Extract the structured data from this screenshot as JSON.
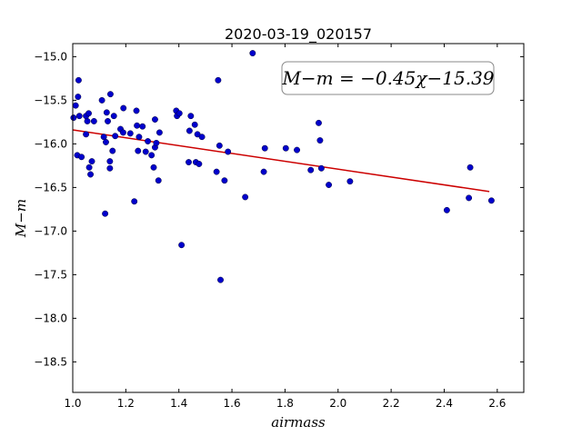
{
  "chart_data": {
    "type": "scatter",
    "title": "2020-03-19_020157",
    "xlabel": "airmass",
    "ylabel": "M−m",
    "xlim": [
      1.0,
      2.7
    ],
    "ylim": [
      -18.85,
      -14.85
    ],
    "y_inverted": true,
    "xticks": [
      "1.0",
      "1.2",
      "1.4",
      "1.6",
      "1.8",
      "2.0",
      "2.2",
      "2.4",
      "2.6"
    ],
    "yticks": [
      "−15.0",
      "−15.5",
      "−16.0",
      "−16.5",
      "−17.0",
      "−17.5",
      "−18.0",
      "−18.5"
    ],
    "grid": false,
    "annotation": "M−m = −0.45χ−15.39",
    "point_color": "#0000cc",
    "fit_color": "#cc0000",
    "fit": {
      "slope": -0.45,
      "intercept": -15.39,
      "x_range": [
        1.0,
        2.57
      ]
    },
    "points": [
      [
        1.003,
        -15.7
      ],
      [
        1.011,
        -15.56
      ],
      [
        1.017,
        -16.13
      ],
      [
        1.02,
        -15.46
      ],
      [
        1.022,
        -15.27
      ],
      [
        1.025,
        -15.68
      ],
      [
        1.033,
        -16.15
      ],
      [
        1.05,
        -15.68
      ],
      [
        1.05,
        -15.89
      ],
      [
        1.055,
        -15.74
      ],
      [
        1.06,
        -15.65
      ],
      [
        1.062,
        -16.27
      ],
      [
        1.067,
        -16.35
      ],
      [
        1.072,
        -16.2
      ],
      [
        1.08,
        -15.74
      ],
      [
        1.11,
        -15.5
      ],
      [
        1.117,
        -15.92
      ],
      [
        1.122,
        -16.8
      ],
      [
        1.125,
        -15.98
      ],
      [
        1.128,
        -15.64
      ],
      [
        1.132,
        -15.74
      ],
      [
        1.14,
        -16.28
      ],
      [
        1.14,
        -16.2
      ],
      [
        1.142,
        -15.43
      ],
      [
        1.15,
        -16.08
      ],
      [
        1.155,
        -15.68
      ],
      [
        1.16,
        -15.91
      ],
      [
        1.18,
        -15.83
      ],
      [
        1.19,
        -15.87
      ],
      [
        1.191,
        -15.59
      ],
      [
        1.217,
        -15.88
      ],
      [
        1.232,
        -16.66
      ],
      [
        1.24,
        -15.62
      ],
      [
        1.242,
        -15.79
      ],
      [
        1.246,
        -16.08
      ],
      [
        1.25,
        -15.92
      ],
      [
        1.263,
        -15.8
      ],
      [
        1.275,
        -16.09
      ],
      [
        1.283,
        -15.97
      ],
      [
        1.297,
        -16.13
      ],
      [
        1.305,
        -16.27
      ],
      [
        1.31,
        -15.72
      ],
      [
        1.31,
        -16.04
      ],
      [
        1.315,
        -15.99
      ],
      [
        1.323,
        -16.42
      ],
      [
        1.327,
        -15.87
      ],
      [
        1.39,
        -15.62
      ],
      [
        1.393,
        -15.68
      ],
      [
        1.402,
        -15.65
      ],
      [
        1.41,
        -17.16
      ],
      [
        1.437,
        -16.21
      ],
      [
        1.44,
        -15.85
      ],
      [
        1.445,
        -15.68
      ],
      [
        1.46,
        -15.78
      ],
      [
        1.464,
        -16.21
      ],
      [
        1.47,
        -15.89
      ],
      [
        1.476,
        -16.23
      ],
      [
        1.487,
        -15.92
      ],
      [
        1.542,
        -16.32
      ],
      [
        1.548,
        -15.27
      ],
      [
        1.553,
        -16.02
      ],
      [
        1.557,
        -17.56
      ],
      [
        1.572,
        -16.42
      ],
      [
        1.585,
        -16.09
      ],
      [
        1.65,
        -16.61
      ],
      [
        1.678,
        -14.96
      ],
      [
        1.72,
        -16.32
      ],
      [
        1.724,
        -16.05
      ],
      [
        1.803,
        -16.05
      ],
      [
        1.845,
        -16.07
      ],
      [
        1.897,
        -16.3
      ],
      [
        1.927,
        -15.76
      ],
      [
        1.932,
        -15.96
      ],
      [
        1.937,
        -16.28
      ],
      [
        1.965,
        -16.47
      ],
      [
        2.045,
        -16.43
      ],
      [
        2.41,
        -16.76
      ],
      [
        2.493,
        -16.62
      ],
      [
        2.498,
        -16.27
      ],
      [
        2.578,
        -16.65
      ]
    ]
  }
}
